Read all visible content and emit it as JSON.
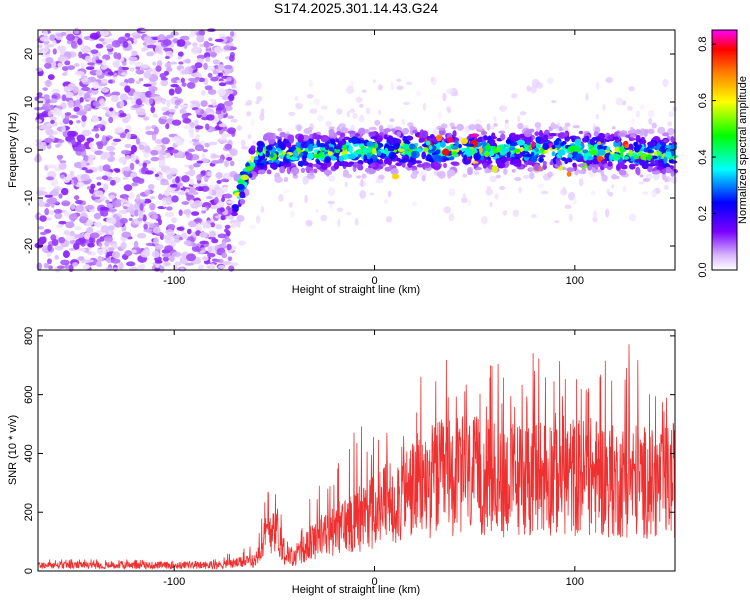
{
  "title": "S174.2025.301.14.43.G24",
  "chart_data": [
    {
      "type": "heatmap",
      "xlabel": "Height of straight line (km)",
      "ylabel": "Frequency (Hz)",
      "xlim": [
        -168,
        150
      ],
      "ylim": [
        -25,
        25
      ],
      "xticks": [
        -100,
        0,
        100
      ],
      "yticks": [
        -20,
        -10,
        0,
        10,
        20
      ],
      "colorbar": {
        "label": "Normalized spectral amplitude",
        "range": [
          0.0,
          0.85
        ],
        "ticks": [
          0.0,
          0.2,
          0.4,
          0.6,
          0.8
        ],
        "colormap": [
          "#ffffff",
          "#d9b8ff",
          "#7a00ff",
          "#0000ff",
          "#00ffff",
          "#00ff00",
          "#ffff00",
          "#ff8000",
          "#ff0000",
          "#ff00ff"
        ]
      },
      "signal_band": {
        "onset_height_km": -70,
        "frequency_trend": [
          [
            -70,
            -11
          ],
          [
            -60,
            -1
          ],
          [
            0,
            0
          ],
          [
            50,
            0
          ],
          [
            100,
            0
          ],
          [
            145,
            -1
          ]
        ],
        "peak_amplitude": 0.85
      },
      "noise_region_amplitude": 0.15
    },
    {
      "type": "line",
      "xlabel": "Height of straight line (km)",
      "ylabel": "SNR (10 * v/v)",
      "xlim": [
        -168,
        150
      ],
      "ylim": [
        0,
        820
      ],
      "xticks": [
        -100,
        0,
        100
      ],
      "yticks": [
        0,
        200,
        400,
        600,
        800
      ],
      "series": [
        {
          "name": "SNR",
          "color": "#ee3030",
          "envelope_x": [
            -168,
            -80,
            -60,
            -50,
            -45,
            -40,
            -30,
            -20,
            -10,
            0,
            10,
            20,
            30,
            40,
            50,
            60,
            70,
            80,
            90,
            100,
            110,
            120,
            130,
            140,
            150
          ],
          "envelope_mean": [
            20,
            20,
            35,
            180,
            60,
            45,
            110,
            140,
            180,
            210,
            250,
            290,
            320,
            330,
            330,
            320,
            320,
            330,
            340,
            330,
            330,
            310,
            320,
            300,
            320
          ],
          "envelope_peak": [
            40,
            40,
            100,
            380,
            120,
            90,
            300,
            330,
            570,
            450,
            510,
            620,
            760,
            750,
            680,
            720,
            640,
            760,
            740,
            650,
            760,
            720,
            820,
            650,
            560
          ]
        }
      ]
    }
  ]
}
